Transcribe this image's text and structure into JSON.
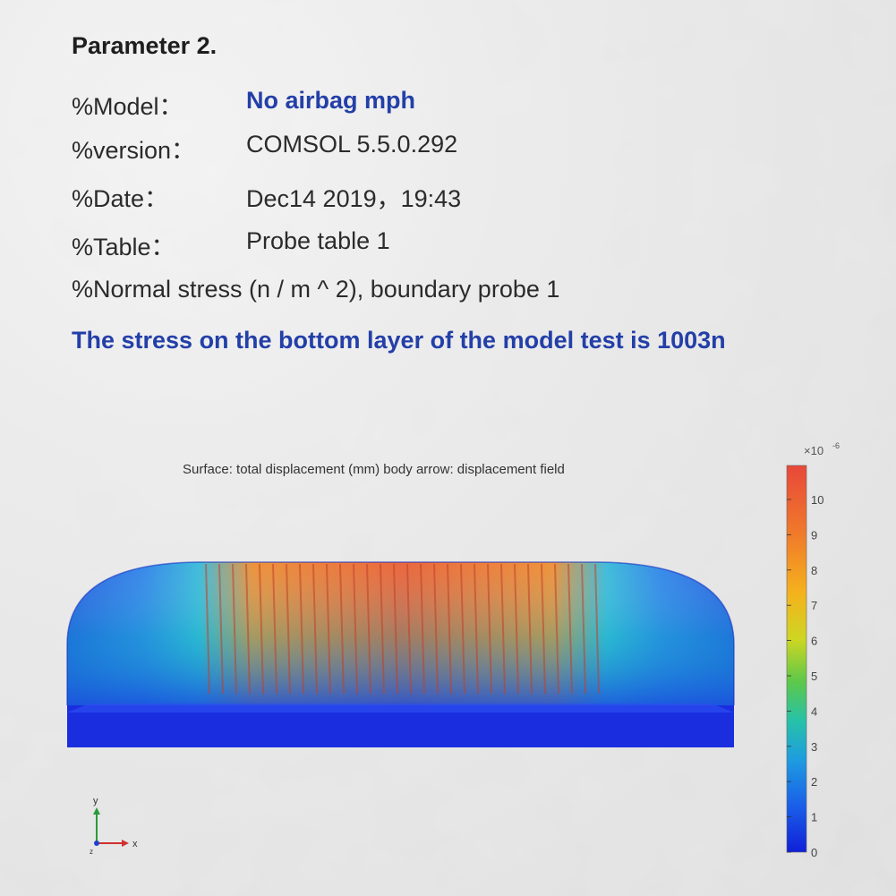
{
  "header": {
    "title": "Parameter 2."
  },
  "params": [
    {
      "key": "%Model：",
      "value": "No airbag mph",
      "accent": true
    },
    {
      "key": "%version：",
      "value": "COMSOL 5.5.0.292",
      "accent": false
    },
    {
      "key": "%Date：",
      "value": "Dec14 2019，19:43",
      "accent": false
    },
    {
      "key": "%Table：",
      "value": "Probe table 1",
      "accent": false
    }
  ],
  "stress_line": "%Normal stress (n / m ^ 2), boundary probe 1",
  "conclusion": "The stress on the bottom layer of the model test is 1003n",
  "plot": {
    "title": "Surface: total displacement (mm) body arrow: displacement field",
    "colorbar": {
      "multiplier": "×10",
      "exponent": "-6",
      "ticks": [
        "10",
        "9",
        "8",
        "7",
        "6",
        "5",
        "4",
        "3",
        "2",
        "1",
        "0"
      ],
      "colors": [
        "#e8483a",
        "#f07b2a",
        "#f5b21d",
        "#cdd623",
        "#5cc84a",
        "#27c2a8",
        "#1e9de0",
        "#1a5fe8",
        "#1020d8"
      ]
    },
    "axes": {
      "y_label": "y",
      "x_label": "x",
      "z_label": "z"
    }
  }
}
